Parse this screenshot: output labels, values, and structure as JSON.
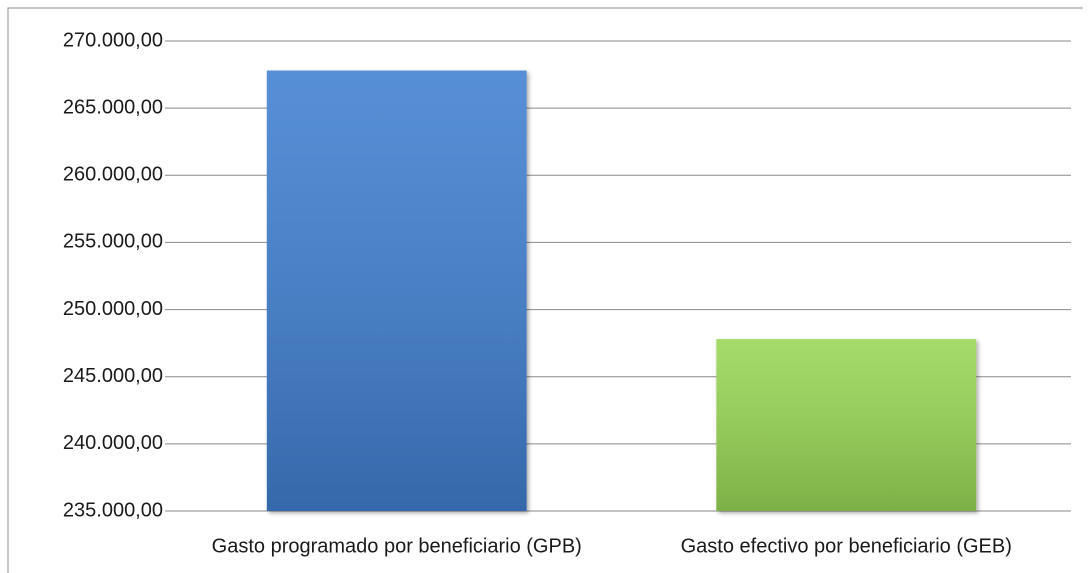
{
  "chart_data": {
    "type": "bar",
    "categories": [
      "Gasto programado por beneficiario (GPB)",
      "Gasto efectivo por beneficiario (GEB)"
    ],
    "values": [
      267800,
      247800
    ],
    "colors": [
      "#3f7fd0",
      "#98d654"
    ],
    "ylim": [
      235000,
      270000
    ],
    "yticks": [
      {
        "value": 235000,
        "label": "235.000,00"
      },
      {
        "value": 240000,
        "label": "240.000,00"
      },
      {
        "value": 245000,
        "label": "245.000,00"
      },
      {
        "value": 250000,
        "label": "250.000,00"
      },
      {
        "value": 255000,
        "label": "255.000,00"
      },
      {
        "value": 260000,
        "label": "260.000,00"
      },
      {
        "value": 265000,
        "label": "265.000,00"
      },
      {
        "value": 270000,
        "label": "270.000,00"
      }
    ],
    "grid": true
  }
}
